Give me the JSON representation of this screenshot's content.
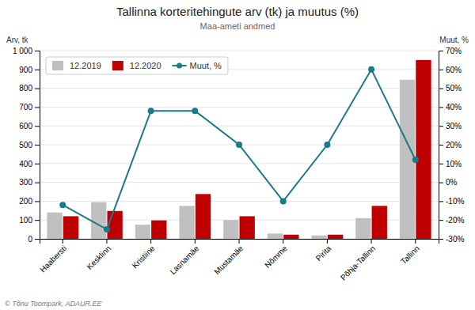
{
  "chart_data": {
    "type": "bar",
    "title": "Tallinna korteritehingute arv (tk) ja muutus (%)",
    "subtitle": "Maa-ameti andmed",
    "y_label": "Arv, tk",
    "y2_label": "Muut, %",
    "categories": [
      "Haabersti",
      "Kesklinn",
      "Kristiine",
      "Lasnamäe",
      "Mustamäe",
      "Nõmme",
      "Pirita",
      "Põhja-Tallinn",
      "Tallinn"
    ],
    "series": [
      {
        "name": "12.2019",
        "color": "#c0c0c0",
        "values": [
          140,
          195,
          75,
          175,
          100,
          28,
          18,
          110,
          845
        ]
      },
      {
        "name": "12.2020",
        "color": "#c00000",
        "values": [
          120,
          148,
          98,
          238,
          120,
          22,
          22,
          175,
          950
        ]
      },
      {
        "name": "Muut, %",
        "type": "line",
        "axis": "y2",
        "color": "#1a7a8a",
        "marker": "circle",
        "values": [
          -12,
          -25,
          38,
          38,
          20,
          -10,
          20,
          60,
          12
        ]
      }
    ],
    "ylim": [
      0,
      1000
    ],
    "yticks": [
      0,
      100,
      200,
      300,
      400,
      500,
      600,
      700,
      800,
      900,
      {
        "value": 1000,
        "label": "1 000"
      }
    ],
    "y2lim": [
      -30,
      70
    ],
    "y2ticks": [
      {
        "value": -30,
        "label": "-30%"
      },
      {
        "value": -20,
        "label": "-20%"
      },
      {
        "value": -10,
        "label": "-10%"
      },
      {
        "value": 0,
        "label": "0%"
      },
      {
        "value": 10,
        "label": "10%"
      },
      {
        "value": 20,
        "label": "20%"
      },
      {
        "value": 30,
        "label": "30%"
      },
      {
        "value": 40,
        "label": "40%"
      },
      {
        "value": 50,
        "label": "50%"
      },
      {
        "value": 60,
        "label": "60%"
      },
      {
        "value": 70,
        "label": "70%"
      }
    ],
    "grid": true,
    "legend": "upper left",
    "annotations": [
      "© Tõnu Toompark, ADAUR.EE"
    ]
  }
}
